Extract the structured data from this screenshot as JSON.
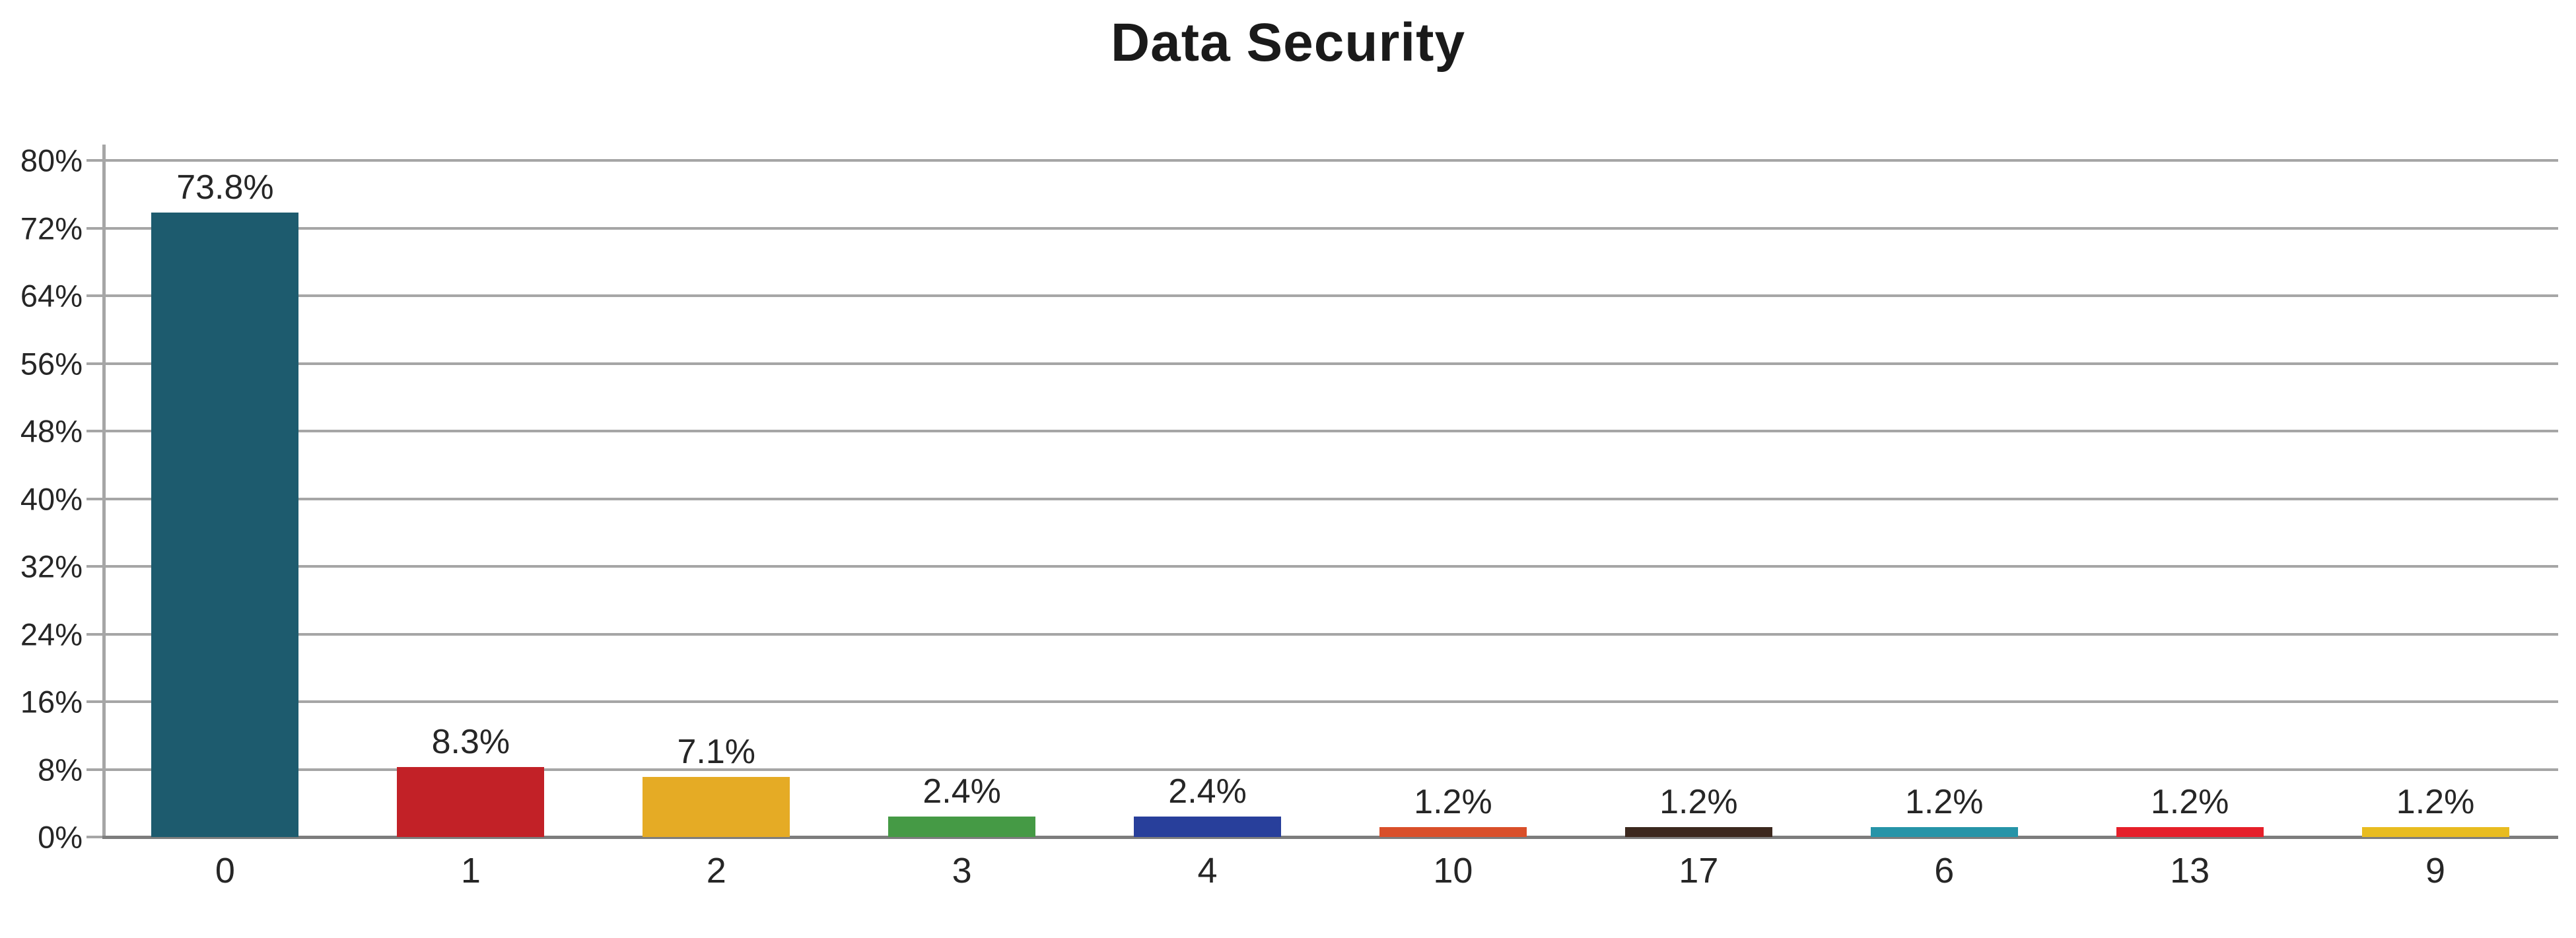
{
  "chart_data": {
    "type": "bar",
    "title": "Data Security",
    "categories": [
      "0",
      "1",
      "2",
      "3",
      "4",
      "10",
      "17",
      "6",
      "13",
      "9"
    ],
    "values": [
      73.8,
      8.3,
      7.1,
      2.4,
      2.4,
      1.2,
      1.2,
      1.2,
      1.2,
      1.2
    ],
    "value_labels": [
      "73.8%",
      "8.3%",
      "7.1%",
      "2.4%",
      "2.4%",
      "1.2%",
      "1.2%",
      "1.2%",
      "1.2%",
      "1.2%"
    ],
    "bar_colors": [
      "#1d5b6e",
      "#c22127",
      "#e5ab25",
      "#459a45",
      "#283f9b",
      "#d94f2a",
      "#3c281e",
      "#2694a8",
      "#e51f2a",
      "#e8bc20"
    ],
    "xlabel": "",
    "ylabel": "",
    "ylim": [
      0,
      80
    ],
    "ytick_step": 8,
    "ytick_labels": [
      "0%",
      "8%",
      "16%",
      "24%",
      "32%",
      "40%",
      "48%",
      "56%",
      "64%",
      "72%",
      "80%"
    ],
    "grid": true,
    "legend": false
  },
  "colors": {
    "gridline": "#a6a6a6",
    "baseline": "#7d7d7d",
    "text": "#262626",
    "title_text": "#1a1a1a"
  }
}
